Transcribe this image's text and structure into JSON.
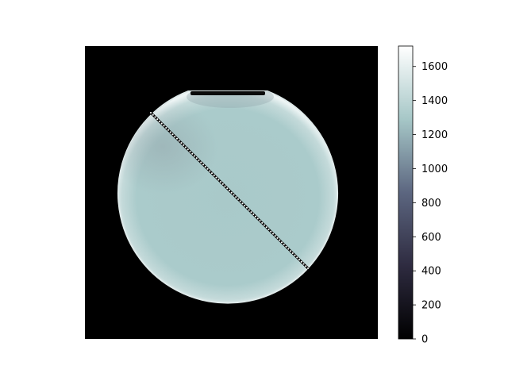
{
  "figure": {
    "image_description_kind": "mri-phantom-slice",
    "colormap": "bone",
    "colorbar": {
      "min": 0,
      "max": 1720,
      "ticks": [
        0,
        200,
        400,
        600,
        800,
        1000,
        1200,
        1400,
        1600
      ],
      "tick_labels": [
        "0",
        "200",
        "400",
        "600",
        "800",
        "1000",
        "1200",
        "1400",
        "1600"
      ],
      "colors": {
        "0": "#000000",
        "0.25": "#2e2b40",
        "0.5": "#5c6680",
        "0.75": "#a6c7c7",
        "1": "#ffffff"
      }
    },
    "phantom_fill": "#a9c9c9",
    "phantom_rim": "#e6f0f0",
    "profile_line_color": "#000000",
    "profile_marker_color": "#ffffff"
  }
}
